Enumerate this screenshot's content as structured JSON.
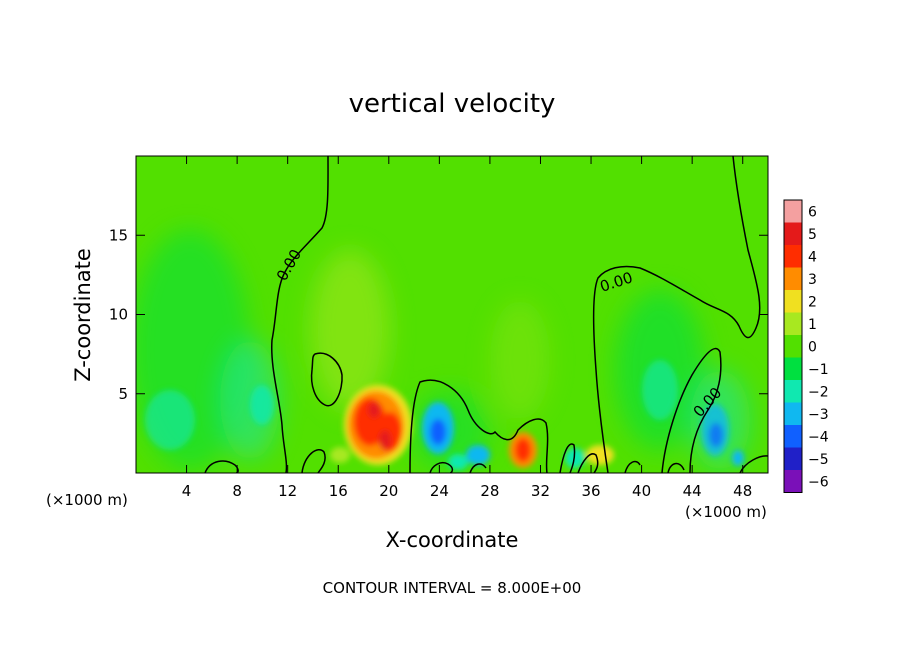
{
  "chart_data": {
    "type": "heatmap",
    "title": "vertical velocity",
    "xlabel": "X-coordinate",
    "ylabel": "Z-coordinate",
    "x_unit_label": "(×1000 m)",
    "x_unit_label_right": "(×1000 m)",
    "xlim": [
      0,
      50
    ],
    "ylim": [
      0,
      20
    ],
    "x_ticks": [
      4,
      8,
      12,
      16,
      20,
      24,
      28,
      32,
      36,
      40,
      44,
      48
    ],
    "y_ticks": [
      5,
      10,
      15
    ],
    "colorbar": {
      "levels": [
        6,
        5,
        4,
        3,
        2,
        1,
        0,
        -1,
        -2,
        -3,
        -4,
        -5,
        -6
      ],
      "labels": [
        "6",
        "5",
        "4",
        "3",
        "2",
        "1",
        "0",
        "−1",
        "−2",
        "−3",
        "−4",
        "−5",
        "−6"
      ],
      "colors": [
        "#f4a0a0",
        "#e41a1a",
        "#ff2d00",
        "#ff8c00",
        "#f0e020",
        "#a8e820",
        "#52e000",
        "#00e040",
        "#10e8b0",
        "#10b8f0",
        "#1060ff",
        "#2020c8",
        "#7a10b8"
      ]
    },
    "contour_label_value": "0.00",
    "footer": "CONTOUR INTERVAL =  8.000E+00",
    "features": [
      {
        "name": "updraft",
        "x": 19.0,
        "z": 3.0,
        "value": 4
      },
      {
        "name": "updraft",
        "x": 20.8,
        "z": 2.6,
        "value": 3
      },
      {
        "name": "updraft",
        "x": 30.5,
        "z": 1.5,
        "value": 3
      },
      {
        "name": "downdraft",
        "x": 24.0,
        "z": 3.0,
        "value": -3
      },
      {
        "name": "downdraft",
        "x": 46.0,
        "z": 2.5,
        "value": -2
      },
      {
        "name": "downdraft",
        "x": 10.0,
        "z": 4.5,
        "value": -1
      },
      {
        "name": "downdraft",
        "x": 2.0,
        "z": 3.5,
        "value": -1
      },
      {
        "name": "downdraft",
        "x": 41.0,
        "z": 6.0,
        "value": -1
      }
    ]
  }
}
